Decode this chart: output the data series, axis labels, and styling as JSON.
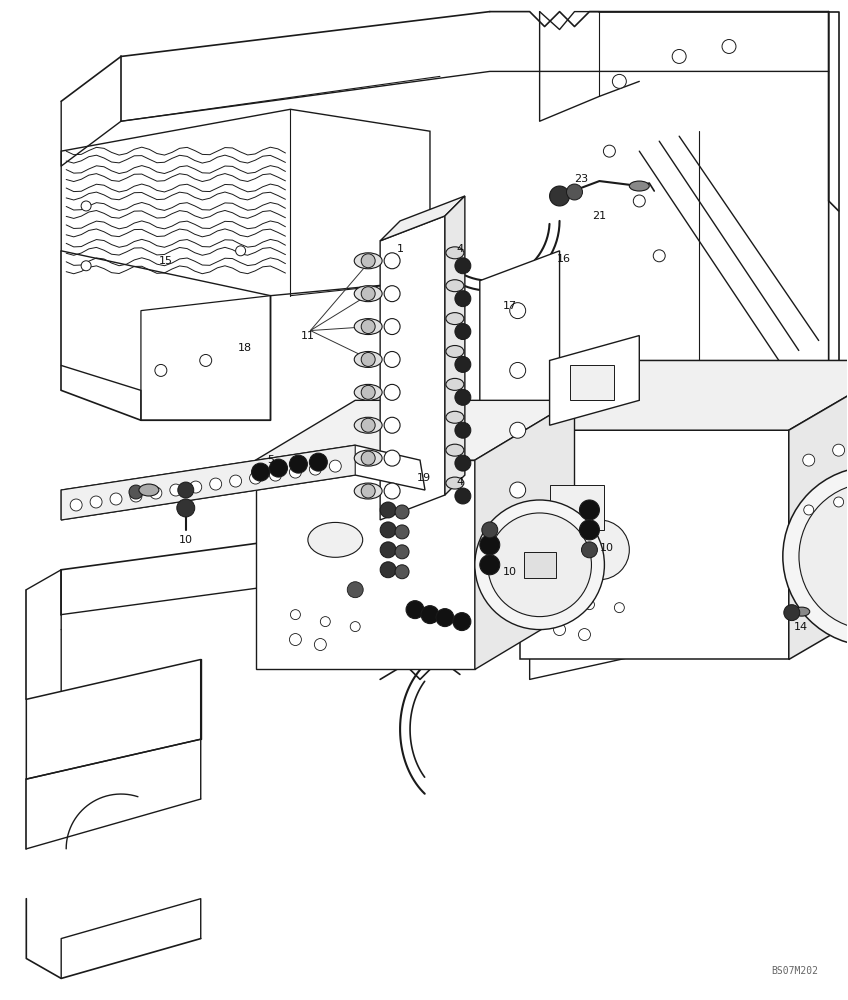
{
  "bg_color": "#ffffff",
  "line_color": "#1a1a1a",
  "image_code": "BS07M202",
  "figsize": [
    8.48,
    10.0
  ],
  "dpi": 100
}
